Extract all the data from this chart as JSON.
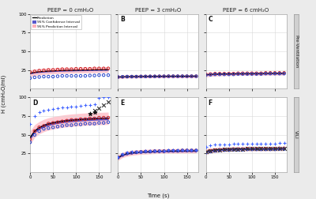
{
  "fig_width": 4.0,
  "fig_height": 2.52,
  "dpi": 100,
  "background_color": "#ebebeb",
  "panel_bg": "#ffffff",
  "grid_color": "#d8d8d8",
  "col_titles": [
    "PEEP = 0 cmH₂O",
    "PEEP = 3 cmH₂O",
    "PEEP = 6 cmH₂O"
  ],
  "row_labels": [
    "Pre-Ventilation",
    "VILI"
  ],
  "xlabel": "Time (s)",
  "ylabel": "H (cmH₂O/ml)",
  "time": [
    0,
    10,
    20,
    30,
    40,
    50,
    60,
    70,
    80,
    90,
    100,
    110,
    120,
    130,
    140,
    150,
    160,
    170
  ],
  "panels": {
    "A": {
      "pred": [
        20.5,
        21.8,
        22.5,
        23.0,
        23.4,
        23.7,
        24.0,
        24.2,
        24.4,
        24.5,
        24.7,
        24.8,
        24.9,
        25.0,
        25.1,
        25.2,
        25.3,
        25.4
      ],
      "ci_lo": [
        19.5,
        20.8,
        21.5,
        22.0,
        22.4,
        22.7,
        23.0,
        23.2,
        23.4,
        23.5,
        23.7,
        23.8,
        23.9,
        24.0,
        24.1,
        24.2,
        24.3,
        24.4
      ],
      "ci_hi": [
        21.5,
        22.8,
        23.5,
        24.0,
        24.4,
        24.7,
        25.0,
        25.2,
        25.4,
        25.5,
        25.7,
        25.8,
        25.9,
        26.0,
        26.1,
        26.2,
        26.3,
        26.4
      ],
      "pi_lo": [
        16.0,
        17.5,
        18.3,
        18.9,
        19.3,
        19.7,
        20.0,
        20.2,
        20.4,
        20.6,
        20.8,
        20.9,
        21.0,
        21.1,
        21.2,
        21.3,
        21.4,
        21.5
      ],
      "pi_hi": [
        25.0,
        26.1,
        26.7,
        27.1,
        27.5,
        27.7,
        28.0,
        28.2,
        28.4,
        28.4,
        28.6,
        28.7,
        28.8,
        28.9,
        29.0,
        29.1,
        29.2,
        29.3
      ],
      "scatter_red": [
        22,
        23,
        24,
        24.5,
        25,
        25,
        25.5,
        26,
        26,
        26,
        26.5,
        26.5,
        26.5,
        26.5,
        27,
        27,
        27,
        27
      ],
      "scatter_blue": [
        14,
        15,
        15.5,
        16,
        16,
        16,
        16.5,
        17,
        17,
        17,
        17,
        17,
        17,
        17.5,
        17.5,
        18,
        18,
        18
      ],
      "scatter_plus_blue": null,
      "scatter_x_black": null,
      "scatter_star_black": null
    },
    "B": {
      "pred": [
        15.5,
        15.8,
        16.0,
        16.1,
        16.2,
        16.2,
        16.3,
        16.3,
        16.4,
        16.4,
        16.4,
        16.5,
        16.5,
        16.5,
        16.5,
        16.5,
        16.6,
        16.6
      ],
      "ci_lo": [
        15.0,
        15.3,
        15.5,
        15.6,
        15.7,
        15.7,
        15.8,
        15.8,
        15.9,
        15.9,
        15.9,
        16.0,
        16.0,
        16.0,
        16.0,
        16.0,
        16.1,
        16.1
      ],
      "ci_hi": [
        16.0,
        16.3,
        16.5,
        16.6,
        16.7,
        16.7,
        16.8,
        16.8,
        16.9,
        16.9,
        16.9,
        17.0,
        17.0,
        17.0,
        17.0,
        17.0,
        17.1,
        17.1
      ],
      "pi_lo": [
        13.5,
        13.8,
        14.0,
        14.1,
        14.2,
        14.2,
        14.3,
        14.3,
        14.4,
        14.4,
        14.4,
        14.5,
        14.5,
        14.5,
        14.5,
        14.5,
        14.6,
        14.6
      ],
      "pi_hi": [
        17.5,
        17.8,
        18.0,
        18.1,
        18.2,
        18.2,
        18.3,
        18.3,
        18.4,
        18.4,
        18.4,
        18.5,
        18.5,
        18.5,
        18.5,
        18.5,
        18.6,
        18.6
      ],
      "scatter_red": [
        15.5,
        15.8,
        16,
        16,
        16,
        16.2,
        16.2,
        16.3,
        16.3,
        16.4,
        16.4,
        16.5,
        16.5,
        16.5,
        16.5,
        16.5,
        16.5,
        16.5
      ],
      "scatter_blue": [
        15.5,
        15.8,
        16,
        16,
        16,
        16.2,
        16.2,
        16.3,
        16.3,
        16.4,
        16.4,
        16.5,
        16.5,
        16.5,
        16.5,
        16.5,
        16.5,
        16.5
      ],
      "scatter_plus_blue": null,
      "scatter_x_black": null,
      "scatter_star_black": null
    },
    "C": {
      "pred": [
        18.5,
        19.0,
        19.3,
        19.5,
        19.6,
        19.7,
        19.8,
        19.9,
        20.0,
        20.0,
        20.1,
        20.1,
        20.2,
        20.2,
        20.2,
        20.3,
        20.3,
        20.3
      ],
      "ci_lo": [
        17.8,
        18.3,
        18.6,
        18.8,
        18.9,
        19.0,
        19.1,
        19.2,
        19.3,
        19.3,
        19.4,
        19.4,
        19.5,
        19.5,
        19.5,
        19.6,
        19.6,
        19.6
      ],
      "ci_hi": [
        19.2,
        19.7,
        20.0,
        20.2,
        20.3,
        20.4,
        20.5,
        20.6,
        20.7,
        20.7,
        20.8,
        20.8,
        20.9,
        20.9,
        20.9,
        21.0,
        21.0,
        21.0
      ],
      "pi_lo": [
        15.5,
        16.3,
        16.7,
        17.0,
        17.2,
        17.3,
        17.4,
        17.5,
        17.6,
        17.6,
        17.7,
        17.7,
        17.8,
        17.8,
        17.8,
        17.9,
        17.9,
        17.9
      ],
      "pi_hi": [
        21.5,
        21.7,
        21.9,
        22.0,
        22.0,
        22.1,
        22.2,
        22.3,
        22.4,
        22.4,
        22.5,
        22.5,
        22.6,
        22.6,
        22.6,
        22.7,
        22.7,
        22.7
      ],
      "scatter_red": [
        19,
        19.5,
        20,
        20,
        20,
        20,
        20,
        20.5,
        20.5,
        20.5,
        20.5,
        20.5,
        20.5,
        21,
        21,
        21,
        21,
        21
      ],
      "scatter_blue": [
        18,
        18.5,
        19,
        19,
        19,
        19,
        19,
        19.5,
        19.5,
        19.5,
        19.5,
        19.5,
        19.5,
        20,
        20,
        20,
        20,
        20
      ],
      "scatter_plus_blue": null,
      "scatter_x_black": null,
      "scatter_star_black": null
    },
    "D": {
      "pred": [
        46.0,
        55.0,
        59.5,
        62.5,
        64.5,
        66.0,
        67.2,
        68.1,
        68.9,
        69.5,
        70.0,
        70.5,
        70.9,
        71.2,
        71.5,
        71.7,
        71.9,
        72.1
      ],
      "ci_lo": [
        43.5,
        52.8,
        57.5,
        60.5,
        62.5,
        64.0,
        65.2,
        66.1,
        66.9,
        67.5,
        68.0,
        68.5,
        68.9,
        69.2,
        69.5,
        69.7,
        69.9,
        70.1
      ],
      "ci_hi": [
        48.5,
        57.2,
        61.5,
        64.5,
        66.5,
        68.0,
        69.2,
        70.1,
        70.9,
        71.5,
        72.0,
        72.5,
        72.9,
        73.2,
        73.5,
        73.7,
        73.9,
        74.1
      ],
      "pi_lo": [
        37.0,
        46.5,
        51.2,
        54.2,
        56.2,
        57.7,
        58.9,
        59.8,
        60.6,
        61.2,
        61.7,
        62.2,
        62.6,
        62.9,
        63.2,
        63.4,
        63.6,
        63.8
      ],
      "pi_hi": [
        55.0,
        63.5,
        67.8,
        70.8,
        72.8,
        74.3,
        75.5,
        76.4,
        77.2,
        77.8,
        78.3,
        78.8,
        79.2,
        79.5,
        79.8,
        80.0,
        80.2,
        80.4
      ],
      "scatter_red": [
        44,
        55,
        60,
        62,
        65,
        66,
        67,
        68,
        69,
        70,
        70,
        71,
        71,
        72,
        72,
        73,
        73,
        73
      ],
      "scatter_blue": [
        40,
        50,
        55,
        58,
        59,
        60,
        61,
        62,
        63,
        63,
        64,
        64,
        65,
        65,
        65,
        66,
        66,
        67
      ],
      "scatter_plus_blue": [
        64,
        75,
        80,
        82,
        84,
        85,
        86,
        87,
        87,
        88,
        88,
        89,
        90,
        90,
        91,
        99,
        100,
        100
      ],
      "scatter_x_black": [
        null,
        null,
        null,
        null,
        null,
        null,
        null,
        null,
        null,
        null,
        null,
        null,
        null,
        null,
        82,
        86,
        90,
        94
      ],
      "scatter_star_black": [
        null,
        null,
        null,
        null,
        null,
        null,
        null,
        null,
        null,
        null,
        null,
        null,
        null,
        78,
        80,
        null,
        null,
        null
      ]
    },
    "E": {
      "pred": [
        19.5,
        23.0,
        24.8,
        25.8,
        26.5,
        27.0,
        27.3,
        27.6,
        27.8,
        28.0,
        28.1,
        28.2,
        28.3,
        28.4,
        28.5,
        28.5,
        28.6,
        28.6
      ],
      "ci_lo": [
        18.5,
        22.0,
        23.8,
        24.8,
        25.5,
        26.0,
        26.3,
        26.6,
        26.8,
        27.0,
        27.1,
        27.2,
        27.3,
        27.4,
        27.5,
        27.5,
        27.6,
        27.6
      ],
      "ci_hi": [
        20.5,
        24.0,
        25.8,
        26.8,
        27.5,
        28.0,
        28.3,
        28.6,
        28.8,
        29.0,
        29.1,
        29.2,
        29.3,
        29.4,
        29.5,
        29.5,
        29.6,
        29.6
      ],
      "pi_lo": [
        15.5,
        19.5,
        21.3,
        22.5,
        23.2,
        23.8,
        24.1,
        24.4,
        24.7,
        24.9,
        25.0,
        25.1,
        25.2,
        25.3,
        25.4,
        25.5,
        25.6,
        25.6
      ],
      "pi_hi": [
        23.5,
        26.5,
        28.3,
        29.1,
        29.8,
        30.2,
        30.5,
        30.8,
        30.9,
        31.1,
        31.2,
        31.3,
        31.4,
        31.5,
        31.6,
        31.5,
        31.6,
        31.6
      ],
      "scatter_red": [
        19.5,
        23,
        25,
        26,
        26.5,
        27,
        27.5,
        27.5,
        28,
        28,
        28,
        28.5,
        28.5,
        28.5,
        29,
        29,
        29,
        29
      ],
      "scatter_blue": [
        19.5,
        23,
        25,
        26,
        26.5,
        27,
        27.5,
        27.5,
        28,
        28,
        28,
        28.5,
        28.5,
        28.5,
        29,
        29,
        29,
        29
      ],
      "scatter_plus_blue": [
        20.5,
        24,
        26,
        27,
        27.5,
        28,
        28.5,
        28.5,
        29,
        29,
        29,
        29.5,
        29.5,
        29.5,
        30,
        30,
        30,
        30
      ],
      "scatter_x_black": null,
      "scatter_star_black": null
    },
    "F": {
      "pred": [
        27.5,
        29.0,
        29.7,
        30.1,
        30.4,
        30.6,
        30.8,
        30.9,
        31.0,
        31.1,
        31.2,
        31.2,
        31.3,
        31.3,
        31.4,
        31.4,
        31.4,
        31.5
      ],
      "ci_lo": [
        26.5,
        28.0,
        28.7,
        29.1,
        29.4,
        29.6,
        29.8,
        29.9,
        30.0,
        30.1,
        30.2,
        30.2,
        30.3,
        30.3,
        30.4,
        30.4,
        30.4,
        30.5
      ],
      "ci_hi": [
        28.5,
        30.0,
        30.7,
        31.1,
        31.4,
        31.6,
        31.8,
        31.9,
        32.0,
        32.1,
        32.2,
        32.2,
        32.3,
        32.3,
        32.4,
        32.4,
        32.4,
        32.5
      ],
      "pi_lo": [
        23.5,
        25.5,
        26.5,
        27.1,
        27.5,
        27.8,
        28.0,
        28.2,
        28.3,
        28.4,
        28.5,
        28.5,
        28.6,
        28.6,
        28.7,
        28.7,
        28.7,
        28.8
      ],
      "pi_hi": [
        31.5,
        32.5,
        32.9,
        33.1,
        33.3,
        33.4,
        33.6,
        33.6,
        33.7,
        33.8,
        33.9,
        33.9,
        34.0,
        34.0,
        34.1,
        34.1,
        34.1,
        34.2
      ],
      "scatter_red": [
        27,
        28.5,
        29.5,
        30,
        30.5,
        30.5,
        31,
        31,
        31,
        31.5,
        31.5,
        31.5,
        31.5,
        31.5,
        31.5,
        31.5,
        32,
        32
      ],
      "scatter_blue": [
        26,
        27.5,
        28.5,
        29,
        29.5,
        29.5,
        30,
        30,
        30,
        30.5,
        30.5,
        30.5,
        30.5,
        30.5,
        30.5,
        30.5,
        31,
        31
      ],
      "scatter_plus_blue": [
        34,
        35.5,
        36.5,
        37,
        37.5,
        37.5,
        38,
        38,
        38,
        38.5,
        38.5,
        38.5,
        38.5,
        38.5,
        38.5,
        38.5,
        39,
        39
      ],
      "scatter_x_black": [
        27,
        28.5,
        29.5,
        30,
        30.5,
        30.5,
        31,
        31,
        31,
        31.5,
        31.5,
        31.5,
        31.5,
        31.5,
        31.5,
        31.5,
        32,
        32
      ],
      "scatter_star_black": null
    }
  },
  "pred_color": "#000000",
  "ci_color": "#2222bb",
  "ci_alpha": 0.75,
  "pi_color": "#ff8899",
  "pi_alpha": 0.45,
  "scatter_red_color": "#cc2222",
  "scatter_blue_color": "#2244cc",
  "scatter_plus_color": "#4466ff",
  "scatter_x_color": "#333333",
  "scatter_star_color": "#111111",
  "row_label_bg": "#d0d0d0",
  "row_label_edge": "#999999"
}
